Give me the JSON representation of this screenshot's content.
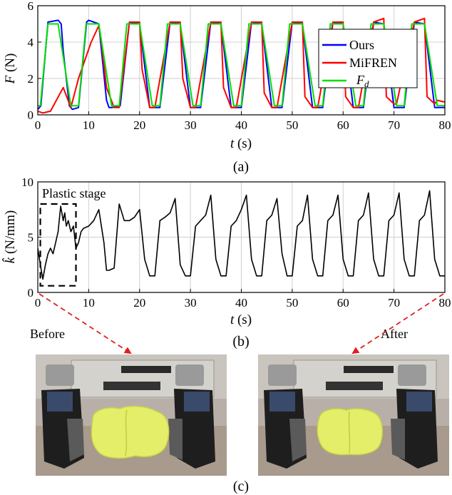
{
  "chart_data": [
    {
      "type": "line",
      "panel": "(a)",
      "xlabel_var": "t",
      "xlabel_unit": " (s)",
      "ylabel_var": "F",
      "ylabel_unit": " (N)",
      "xlim": [
        0,
        80
      ],
      "ylim": [
        0,
        6
      ],
      "xticks": [
        0,
        10,
        20,
        30,
        40,
        50,
        60,
        70,
        80
      ],
      "yticks": [
        0,
        2,
        4,
        6
      ],
      "grid": true,
      "legend_position": "right",
      "series": [
        {
          "name": "Ours",
          "color": "#0000ff",
          "x": [
            0,
            0.6,
            2,
            4,
            4.6,
            5,
            6.2,
            6.8,
            8,
            9.6,
            10,
            12,
            13.5,
            14,
            14.5,
            16.2,
            18,
            20,
            22,
            24,
            26,
            28,
            30,
            32,
            34,
            36,
            38,
            40,
            42,
            44,
            46,
            48,
            50,
            52,
            54,
            56,
            58,
            60,
            62,
            64,
            66,
            68,
            70,
            72,
            74,
            76,
            78,
            80
          ],
          "y": [
            0.3,
            0.5,
            5.1,
            5.2,
            5.0,
            3.5,
            0.5,
            0.3,
            0.4,
            5.1,
            5.2,
            5.0,
            0.8,
            0.4,
            0.4,
            0.5,
            5.1,
            5.0,
            0.4,
            0.4,
            5.1,
            5.0,
            0.4,
            0.4,
            5.1,
            5.0,
            0.4,
            0.4,
            5.1,
            5.0,
            0.4,
            0.4,
            5.1,
            5.0,
            0.4,
            0.4,
            5.1,
            5.0,
            0.4,
            0.4,
            5.1,
            5.0,
            0.4,
            0.4,
            5.1,
            5.0,
            0.4,
            0.4
          ]
        },
        {
          "name": "MiFREN",
          "color": "#ff0000",
          "x": [
            0,
            1,
            2.5,
            5,
            6.5,
            8,
            10.5,
            12,
            12.5,
            13.5,
            15,
            16,
            18,
            20,
            20.5,
            22,
            23,
            26,
            28,
            28.5,
            30,
            31,
            34,
            36,
            36.5,
            38,
            39,
            42,
            44,
            44.5,
            46,
            47,
            50,
            52,
            52.5,
            54,
            55,
            58,
            60,
            60.5,
            62,
            63,
            66,
            68,
            68.5,
            70,
            70.5,
            74,
            76,
            76.5,
            78,
            78.5,
            80
          ],
          "y": [
            0.2,
            0.1,
            0.2,
            1.5,
            0.4,
            2.0,
            4.0,
            4.9,
            4.0,
            1.5,
            0.4,
            0.4,
            5.1,
            5.1,
            2.5,
            0.4,
            0.4,
            5.1,
            5.1,
            2.0,
            0.4,
            0.4,
            5.1,
            5.1,
            1.5,
            0.4,
            0.4,
            5.1,
            5.1,
            1.2,
            0.4,
            0.4,
            5.1,
            5.1,
            1.0,
            0.4,
            0.4,
            5.1,
            5.1,
            1.0,
            0.4,
            0.4,
            5.1,
            5.3,
            1.0,
            0.6,
            0.6,
            5.1,
            5.3,
            1.0,
            0.6,
            0.8,
            0.7
          ]
        },
        {
          "name": "F_d",
          "color": "#00e000",
          "x": [
            0,
            0.5,
            2,
            4,
            6.5,
            8,
            9.5,
            12,
            14.5,
            16,
            17.5,
            20,
            22.5,
            24,
            25.5,
            28,
            30.5,
            32,
            33.5,
            36,
            38.5,
            40,
            41.5,
            44,
            46.5,
            48,
            49.5,
            52,
            54.5,
            56,
            57.5,
            60,
            62.5,
            64,
            65.5,
            68,
            70.5,
            72,
            73.5,
            76,
            78.5,
            80
          ],
          "y": [
            0.5,
            0.5,
            5.0,
            5.0,
            0.5,
            0.5,
            5.0,
            5.0,
            0.5,
            0.5,
            5.0,
            5.0,
            0.5,
            0.5,
            5.0,
            5.0,
            0.5,
            0.5,
            5.0,
            5.0,
            0.5,
            0.5,
            5.0,
            5.0,
            0.5,
            0.5,
            5.0,
            5.0,
            0.5,
            0.5,
            5.0,
            5.0,
            0.5,
            0.5,
            5.0,
            5.0,
            0.5,
            0.5,
            5.0,
            5.0,
            0.5,
            0.5
          ]
        }
      ]
    },
    {
      "type": "line",
      "panel": "(b)",
      "xlabel_var": "t",
      "xlabel_unit": " (s)",
      "ylabel_var": "k̂",
      "ylabel_unit": " (N/mm)",
      "xlim": [
        0,
        80
      ],
      "ylim": [
        0,
        10
      ],
      "xticks": [
        0,
        10,
        20,
        30,
        40,
        50,
        60,
        70,
        80
      ],
      "yticks": [
        0,
        5,
        10
      ],
      "grid": true,
      "annotation": "Plastic stage",
      "annotation_box_x": [
        0.5,
        7.5
      ],
      "annotation_box_y": [
        0.6,
        8.0
      ],
      "series": [
        {
          "color": "#000000",
          "x": [
            0,
            0.5,
            1,
            1.5,
            2,
            2.5,
            3,
            3.5,
            4,
            4.5,
            5,
            5.3,
            5.6,
            6,
            6.5,
            7,
            7.5,
            8,
            8.5,
            9,
            10,
            11,
            12,
            13,
            13.5,
            14,
            15,
            16,
            17,
            18,
            19,
            20,
            21,
            22,
            23,
            24,
            25,
            26,
            27,
            28,
            29,
            30,
            31,
            32,
            33,
            34,
            35,
            36,
            37,
            38,
            39,
            40,
            41,
            42,
            43,
            44,
            45,
            46,
            47,
            48,
            49,
            50,
            51,
            52,
            53,
            54,
            55,
            56,
            57,
            58,
            59,
            60,
            61,
            62,
            63,
            64,
            65,
            66,
            67,
            68,
            69,
            70,
            71,
            72,
            73,
            74,
            75,
            76,
            77,
            78,
            79,
            80
          ],
          "y": [
            4.0,
            2.5,
            1.2,
            2.5,
            3.5,
            4.0,
            3.5,
            4.5,
            5.5,
            7.8,
            6.5,
            7.2,
            6.0,
            6.5,
            5.5,
            6.0,
            4.0,
            4.5,
            5.5,
            5.8,
            6.0,
            6.5,
            7.5,
            4.5,
            2.0,
            2.0,
            2.2,
            8.0,
            6.5,
            6.5,
            6.8,
            7.5,
            3.0,
            1.5,
            1.5,
            6.5,
            6.8,
            7.2,
            8.5,
            2.5,
            1.5,
            1.5,
            6.0,
            6.5,
            7.0,
            8.8,
            3.0,
            1.5,
            1.5,
            6.0,
            6.5,
            7.5,
            8.8,
            3.0,
            1.5,
            1.5,
            6.5,
            7.0,
            8.5,
            3.5,
            1.5,
            1.5,
            6.0,
            6.5,
            8.8,
            3.0,
            1.5,
            1.5,
            6.5,
            7.0,
            8.8,
            3.0,
            1.5,
            1.5,
            6.5,
            7.0,
            9.0,
            3.0,
            1.5,
            1.5,
            6.5,
            7.0,
            9.0,
            3.0,
            1.5,
            1.5,
            6.5,
            7.0,
            9.2,
            3.0,
            1.5,
            1.5
          ]
        }
      ]
    }
  ],
  "labels": {
    "panel_a": "(a)",
    "panel_b": "(b)",
    "panel_c": "(c)",
    "before": "Before",
    "after": "After"
  }
}
